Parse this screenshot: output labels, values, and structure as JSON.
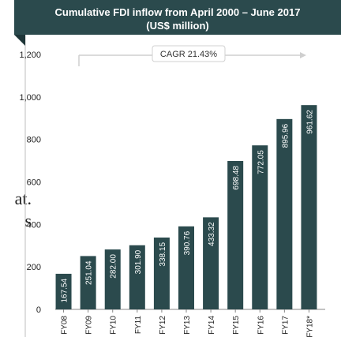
{
  "side_text": [
    "at.",
    "s"
  ],
  "chart_data": {
    "type": "bar",
    "title_line1": "Cumulative FDI inflow from April 2000 – June 2017",
    "title_line2": "(US$ million)",
    "categories": [
      "FY08",
      "FY09",
      "FY10",
      "FY11",
      "FY12",
      "FY13",
      "FY14",
      "FY15",
      "FY16",
      "FY17",
      "FY18*"
    ],
    "values": [
      167.54,
      251.04,
      282.0,
      301.9,
      338.15,
      390.76,
      433.32,
      698.48,
      772.05,
      895.96,
      961.62
    ],
    "value_labels": [
      "167.54",
      "251.04",
      "282.00",
      "301.90",
      "338.15",
      "390.76",
      "433.32",
      "698.48",
      "772.05",
      "895.96",
      "961.62"
    ],
    "ylim": [
      0,
      1200
    ],
    "yticks": [
      "0",
      "200",
      "400",
      "600",
      "800",
      "1,000",
      "1,200"
    ],
    "annotation": "CAGR 21.43%",
    "bar_color": "#2b4a4d",
    "grid": false
  }
}
